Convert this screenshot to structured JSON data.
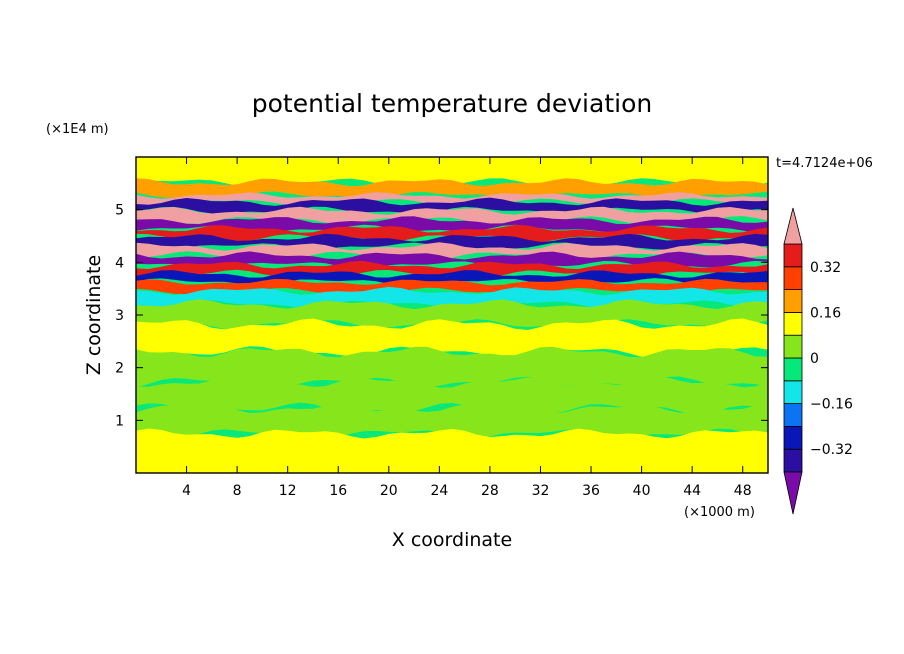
{
  "chart_data": {
    "type": "heatmap",
    "title": "potential temperature deviation",
    "xlabel": "X coordinate",
    "ylabel": "Z coordinate",
    "x_unit": "(×1000 m)",
    "y_unit": "(×1E4 m)",
    "time_label": "t=4.7124e+06",
    "xlim": [
      0,
      50
    ],
    "ylim": [
      0,
      6
    ],
    "x_ticks": [
      4,
      8,
      12,
      16,
      20,
      24,
      28,
      32,
      36,
      40,
      44,
      48
    ],
    "y_ticks": [
      1,
      2,
      3,
      4,
      5
    ],
    "colorbar": {
      "levels": [
        -0.4,
        -0.32,
        -0.24,
        -0.16,
        -0.08,
        0,
        0.08,
        0.16,
        0.24,
        0.32,
        0.4
      ],
      "labels": [
        "0.32",
        "0.16",
        "0",
        "−0.16",
        "−0.32"
      ],
      "label_values": [
        0.32,
        0.16,
        0,
        -0.16,
        -0.32
      ],
      "colors": [
        "#7b0ba8",
        "#2a0fa0",
        "#0a17b8",
        "#0a74f2",
        "#13e6e6",
        "#06e87a",
        "#86e61b",
        "#ffff00",
        "#ffa000",
        "#ff4000",
        "#e51c1c",
        "#f0a0a0"
      ],
      "extend": "both"
    },
    "bands": [
      {
        "y": 5.72,
        "value": 0.08,
        "amp": 0.05
      },
      {
        "y": 5.32,
        "value": 0.18,
        "amp": 0.05
      },
      {
        "y": 5.22,
        "value": 0.44,
        "amp": 0.04
      },
      {
        "y": 5.08,
        "value": -0.36,
        "amp": 0.05
      },
      {
        "y": 4.88,
        "value": 0.44,
        "amp": 0.05
      },
      {
        "y": 4.72,
        "value": -0.44,
        "amp": 0.05
      },
      {
        "y": 4.55,
        "value": 0.36,
        "amp": 0.05
      },
      {
        "y": 4.38,
        "value": -0.36,
        "amp": 0.05
      },
      {
        "y": 4.22,
        "value": 0.44,
        "amp": 0.05
      },
      {
        "y": 4.04,
        "value": -0.44,
        "amp": 0.05
      },
      {
        "y": 3.86,
        "value": 0.36,
        "amp": 0.05
      },
      {
        "y": 3.7,
        "value": -0.28,
        "amp": 0.05
      },
      {
        "y": 3.55,
        "value": 0.28,
        "amp": 0.04
      },
      {
        "y": 3.36,
        "value": -0.12,
        "amp": 0.05
      },
      {
        "y": 3.05,
        "value": 0.0,
        "amp": 0.06
      },
      {
        "y": 2.6,
        "value": 0.08,
        "amp": 0.07
      },
      {
        "y": 2.0,
        "value": 0.04,
        "amp": 0.07
      },
      {
        "y": 1.45,
        "value": 0.06,
        "amp": 0.07
      },
      {
        "y": 1.0,
        "value": 0.02,
        "amp": 0.06
      },
      {
        "y": 0.5,
        "value": 0.08,
        "amp": 0.06
      }
    ]
  }
}
